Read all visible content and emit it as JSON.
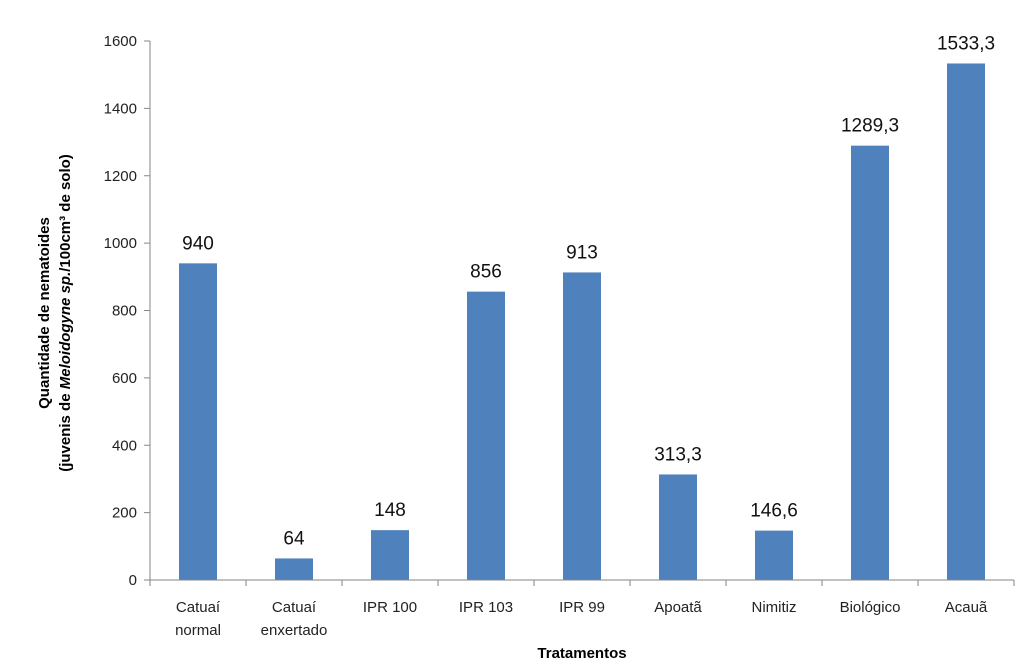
{
  "chart_data": {
    "type": "bar",
    "categories": [
      [
        "Catuaí",
        "normal"
      ],
      [
        "Catuaí",
        "enxertado"
      ],
      [
        "IPR 100"
      ],
      [
        "IPR 103"
      ],
      [
        "IPR 99"
      ],
      [
        "Apoatã"
      ],
      [
        "Nimitiz"
      ],
      [
        "Biológico"
      ],
      [
        "Acauã"
      ]
    ],
    "values": [
      940,
      64,
      148,
      856,
      913,
      313.3,
      146.6,
      1289.3,
      1533.3
    ],
    "data_labels": [
      "940",
      "64",
      "148",
      "856",
      "913",
      "313,3",
      "146,6",
      "1289,3",
      "1533,3"
    ],
    "xlabel": "Tratamentos",
    "ylabel_line1": "Quantidade de nematoides",
    "ylabel_line2_parts": [
      "(juvenis de ",
      "Meloidogyne sp.",
      "/100cm³ de solo)"
    ],
    "ylim": [
      0,
      1600
    ],
    "yticks": [
      0,
      200,
      400,
      600,
      800,
      1000,
      1200,
      1400,
      1600
    ],
    "bar_color": "#4f81bd",
    "axis_color": "#868686",
    "grid": false,
    "legend": "none"
  }
}
